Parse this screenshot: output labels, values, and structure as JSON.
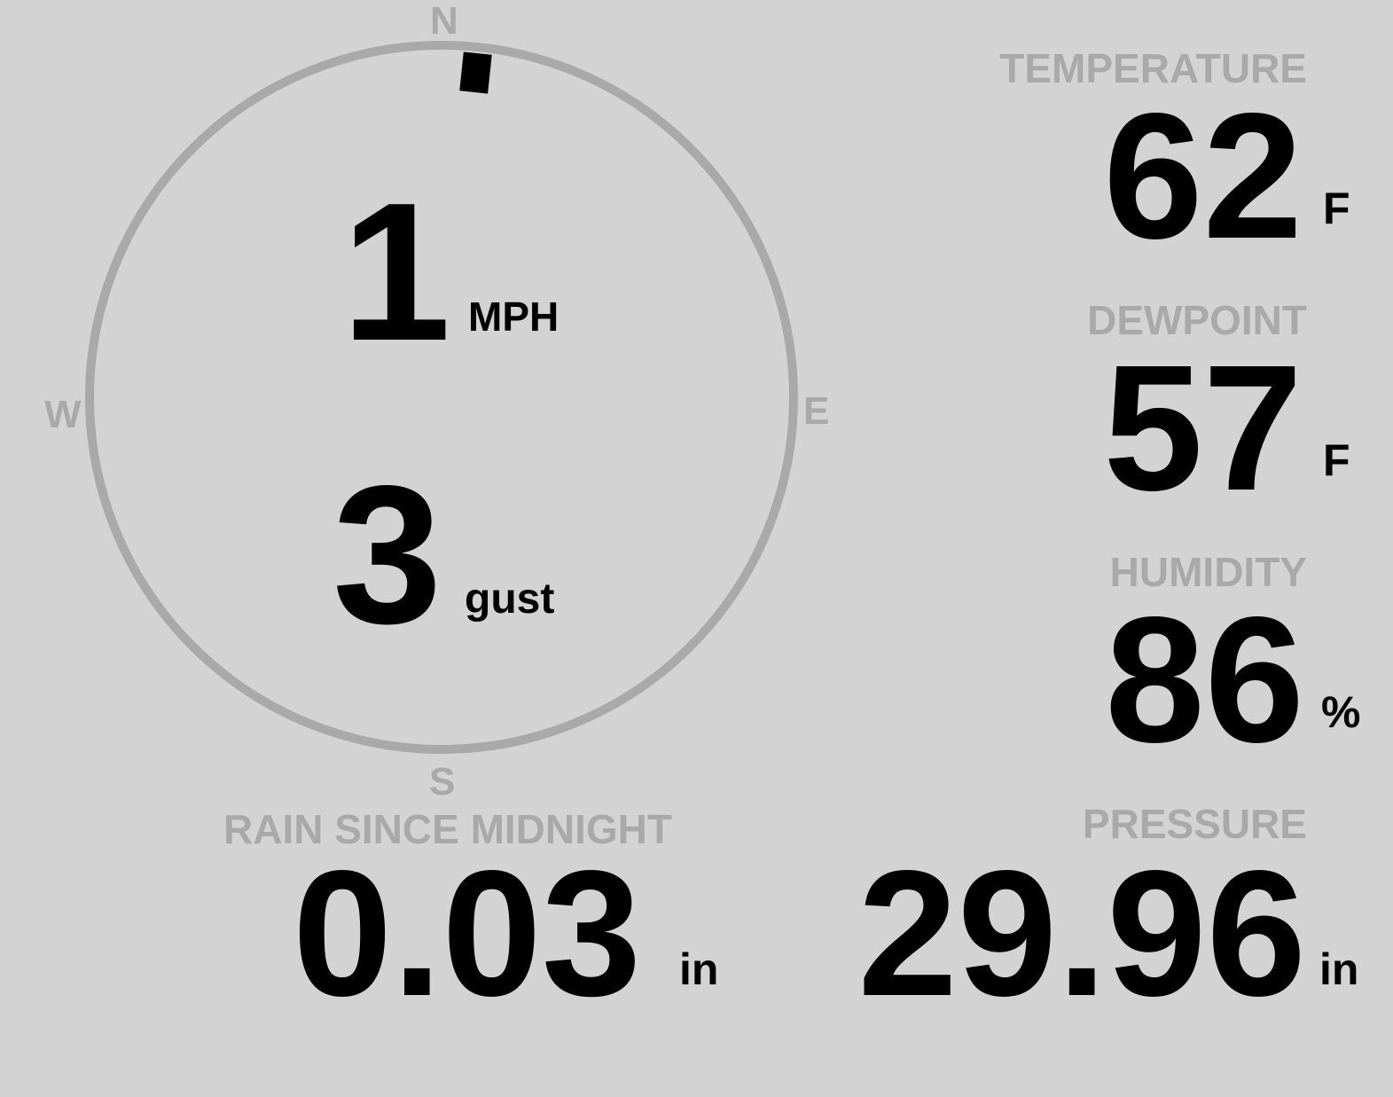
{
  "wind": {
    "speed": "1",
    "speed_unit": "MPH",
    "gust": "3",
    "gust_label": "gust",
    "direction_deg": 6,
    "compass": {
      "n": "N",
      "e": "E",
      "s": "S",
      "w": "W"
    }
  },
  "temperature": {
    "label": "TEMPERATURE",
    "value": "62",
    "unit": "F"
  },
  "dewpoint": {
    "label": "DEWPOINT",
    "value": "57",
    "unit": "F"
  },
  "humidity": {
    "label": "HUMIDITY",
    "value": "86",
    "unit": "%"
  },
  "rain": {
    "label": "RAIN SINCE MIDNIGHT",
    "value": "0.03",
    "unit": "in"
  },
  "pressure": {
    "label": "PRESSURE",
    "value": "29.96",
    "unit": "in"
  },
  "colors": {
    "background": "#d3d3d3",
    "muted": "#a9a9a9",
    "text": "#000000"
  }
}
